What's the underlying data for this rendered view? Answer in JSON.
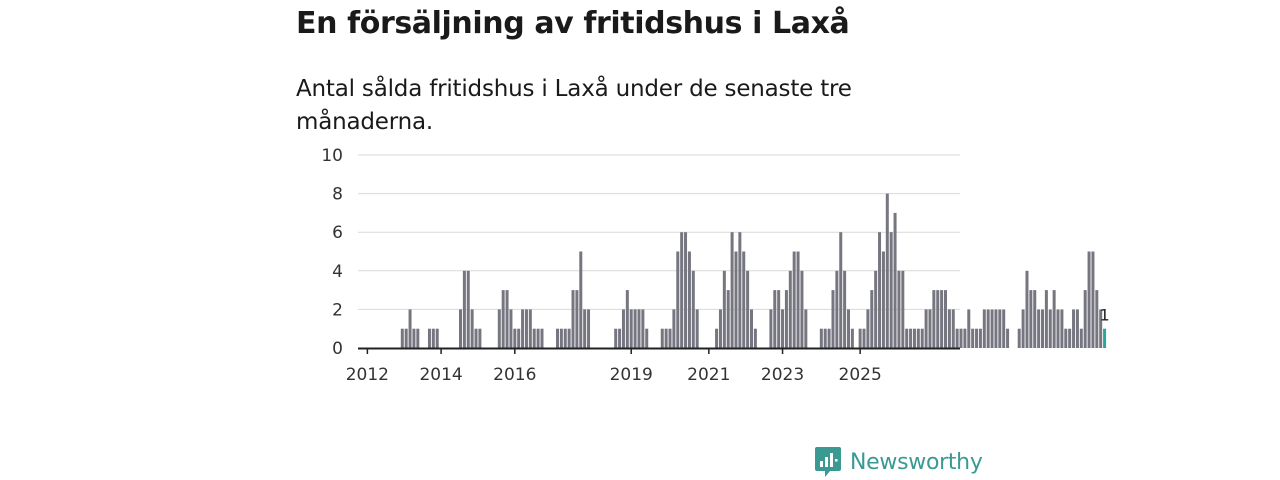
{
  "header": {
    "title": "En försäljning av fritidshus i Laxå",
    "subtitle": "Antal sålda fritidshus i Laxå under de senaste tre månaderna."
  },
  "brand": {
    "name": "Newsworthy",
    "icon": "newsworthy-logo-icon",
    "color": "#3a9a92"
  },
  "colors": {
    "bar": "#767680",
    "highlight": "#2aa79b",
    "grid": "#d9d9d9",
    "axis": "#222222"
  },
  "chart_data": {
    "type": "bar",
    "title": "En försäljning av fritidshus i Laxå",
    "subtitle": "Antal sålda fritidshus i Laxå under de senaste tre månaderna.",
    "xlabel": "",
    "ylabel": "",
    "ylim": [
      0,
      10
    ],
    "yticks": [
      0,
      2,
      4,
      6,
      8,
      10
    ],
    "xticks": [
      "2012",
      "2014",
      "2016",
      "2019",
      "2021",
      "2023",
      "2025"
    ],
    "xtick_positions": [
      1,
      20,
      39,
      69,
      89,
      108,
      128
    ],
    "grid": true,
    "legend": "none",
    "highlight_label": "1",
    "values": [
      0,
      0,
      0,
      0,
      0,
      0,
      0,
      0,
      0,
      0,
      1,
      1,
      2,
      1,
      1,
      0,
      0,
      1,
      1,
      1,
      0,
      0,
      0,
      0,
      0,
      2,
      4,
      4,
      2,
      1,
      1,
      0,
      0,
      0,
      0,
      2,
      3,
      3,
      2,
      1,
      1,
      2,
      2,
      2,
      1,
      1,
      1,
      0,
      0,
      0,
      1,
      1,
      1,
      1,
      3,
      3,
      5,
      2,
      2,
      0,
      0,
      0,
      0,
      0,
      0,
      1,
      1,
      2,
      3,
      2,
      2,
      2,
      2,
      1,
      0,
      0,
      0,
      1,
      1,
      1,
      2,
      5,
      6,
      6,
      5,
      4,
      2,
      0,
      0,
      0,
      0,
      1,
      2,
      4,
      3,
      6,
      5,
      6,
      5,
      4,
      2,
      1,
      0,
      0,
      0,
      2,
      3,
      3,
      2,
      3,
      4,
      5,
      5,
      4,
      2,
      0,
      0,
      0,
      1,
      1,
      1,
      3,
      4,
      6,
      4,
      2,
      1,
      0,
      1,
      1,
      2,
      3,
      4,
      6,
      5,
      8,
      6,
      7,
      4,
      4,
      1,
      1,
      1,
      1,
      1,
      2,
      2,
      3,
      3,
      3,
      3,
      2,
      2,
      1,
      1,
      1,
      2,
      1,
      1,
      1,
      2,
      2,
      2,
      2,
      2,
      2,
      1,
      0,
      0,
      1,
      2,
      4,
      3,
      3,
      2,
      2,
      3,
      2,
      3,
      2,
      2,
      1,
      1,
      2,
      2,
      1,
      3,
      5,
      5,
      3,
      2,
      1
    ]
  }
}
